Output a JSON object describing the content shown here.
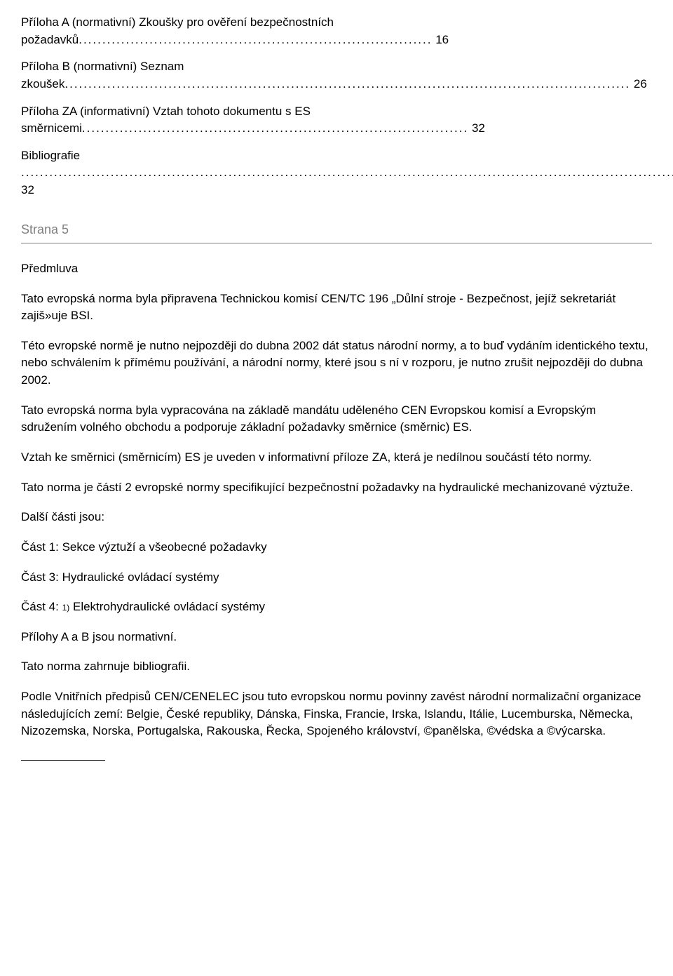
{
  "toc": {
    "entries": [
      {
        "title": "Příloha A (normativní)  Zkoušky pro ověření bezpečnostních požadavků",
        "dots": "...........................................................................",
        "page": "16"
      },
      {
        "title": "Příloha B (normativní)  Seznam zkoušek",
        "dots": "........................................................................................................................",
        "page": "26"
      },
      {
        "title": "Příloha ZA (informativní)  Vztah tohoto dokumentu s ES směrnicemi",
        "dots": "..................................................................................",
        "page": "32"
      },
      {
        "title": "Bibliografie",
        "dots": "................................................................................................................................................................................",
        "page": "32"
      }
    ]
  },
  "strana": "Strana 5",
  "predmluva_heading": "Předmluva",
  "paragraphs": {
    "p1": "Tato evropská norma byla připravena Technickou komisí CEN/TC 196 „Důlní stroje - Bezpečnost, jejíž sekretariát zajiš»uje BSI.",
    "p2": "Této evropské normě je nutno nejpozději do dubna 2002 dát status národní normy, a to buď vydáním identického textu, nebo schválením k přímému používání, a národní normy, které jsou s ní v rozporu, je nutno zrušit nejpozději do dubna 2002.",
    "p3": "Tato evropská norma byla vypracována na základě mandátu uděleného CEN Evropskou komisí a Evropským sdružením volného obchodu a podporuje základní požadavky směrnice (směrnic) ES.",
    "p4": "Vztah ke směrnici (směrnicím) ES je uveden v informativní příloze ZA, která je nedílnou součástí této normy.",
    "p5": "Tato norma je částí 2 evropské normy specifikující bezpečnostní požadavky na hydraulické mechanizované výztuže.",
    "p6": "Další části jsou:",
    "p7": "Část 1: Sekce výztuží a všeobecné požadavky",
    "p8": "Část 3: Hydraulické ovládací systémy",
    "p9_pre": "Část 4: ",
    "p9_sup": "1)",
    "p9_post": " Elektrohydraulické ovládací systémy",
    "p10": "Přílohy A a B jsou normativní.",
    "p11": "Tato norma zahrnuje bibliografii.",
    "p12": "Podle Vnitřních předpisů CEN/CENELEC jsou tuto evropskou normu povinny zavést národní normalizační organizace následujících zemí: Belgie, České republiky, Dánska, Finska, Francie, Irska, Islandu, Itálie, Lucemburska, Německa, Nizozemska, Norska, Portugalska, Rakouska, Řecka, Spojeného království, ©panělska, ©védska a ©výcarska."
  }
}
